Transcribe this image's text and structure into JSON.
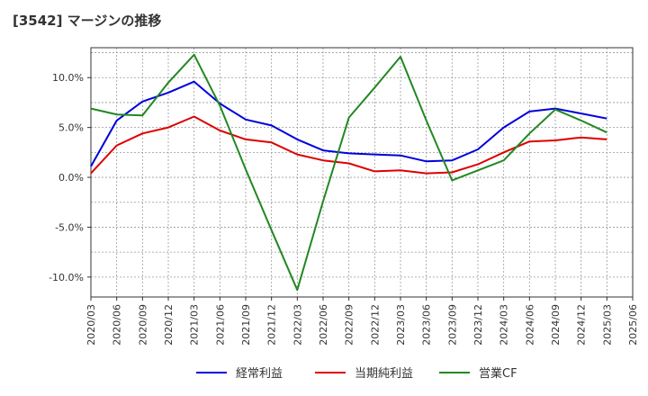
{
  "title": "[3542]  マージンの推移",
  "chart_data": {
    "type": "line",
    "title": "[3542]  マージンの推移",
    "xlabel": "",
    "ylabel": "",
    "ylim": [
      -12,
      13
    ],
    "grid": true,
    "legend_position": "bottom",
    "categories": [
      "2020/03",
      "2020/06",
      "2020/09",
      "2020/12",
      "2021/03",
      "2021/06",
      "2021/09",
      "2021/12",
      "2022/03",
      "2022/06",
      "2022/09",
      "2022/12",
      "2023/03",
      "2023/06",
      "2023/09",
      "2023/12",
      "2024/03",
      "2024/06",
      "2024/09",
      "2024/12",
      "2025/03",
      "2025/06"
    ],
    "y_ticks": [
      {
        "value": 10,
        "label": "10.0%"
      },
      {
        "value": 5,
        "label": "5.0%"
      },
      {
        "value": 0,
        "label": "0.0%"
      },
      {
        "value": -5,
        "label": "-5.0%"
      },
      {
        "value": -10,
        "label": "-10.0%"
      }
    ],
    "series": [
      {
        "name": "経常利益",
        "color": "#0000dd",
        "values": [
          1.1,
          5.7,
          7.6,
          8.5,
          9.6,
          7.4,
          5.8,
          5.2,
          3.8,
          2.7,
          2.4,
          2.3,
          2.2,
          1.6,
          1.7,
          2.8,
          5.0,
          6.6,
          6.9,
          6.4,
          5.9,
          null
        ]
      },
      {
        "name": "当期純利益",
        "color": "#dd0000",
        "values": [
          0.4,
          3.2,
          4.4,
          5.0,
          6.1,
          4.7,
          3.8,
          3.5,
          2.3,
          1.7,
          1.4,
          0.6,
          0.7,
          0.4,
          0.5,
          1.3,
          2.5,
          3.6,
          3.7,
          4.0,
          3.8,
          null
        ]
      },
      {
        "name": "営業CF",
        "color": "#228822",
        "values": [
          6.9,
          6.3,
          6.2,
          9.5,
          12.3,
          7.2,
          0.8,
          -5.3,
          -11.3,
          -2.4,
          6.0,
          9.0,
          12.1,
          5.7,
          -0.3,
          0.7,
          1.7,
          4.4,
          6.8,
          5.7,
          4.5,
          null
        ]
      }
    ]
  }
}
